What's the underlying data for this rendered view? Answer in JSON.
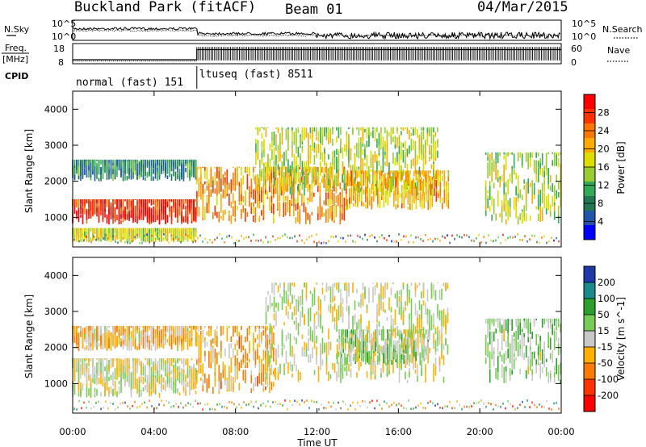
{
  "header": {
    "station": "Buckland Park (fitACF)",
    "beam": "Beam 01",
    "date": "04/Mar/2015"
  },
  "top_panels": {
    "nsky_label": "N.Sky",
    "nsearch_label": "N.Search",
    "freq_label_1": "Freq.",
    "freq_label_2": "[MHz]",
    "nave_label": "Nave",
    "cpid_label": "CPID",
    "noise_ticks_left": [
      "10^5",
      "10^0"
    ],
    "noise_ticks_right": [
      "10^5",
      "10^0"
    ],
    "freq_ticks": [
      "18",
      "8"
    ],
    "nave_ticks": [
      "60",
      "0"
    ],
    "modes": [
      "normal (fast) 151",
      "ltuseq (fast) 8511"
    ],
    "mode_change_hour": 6.1,
    "freq_before_mhz": 10,
    "freq_after_mhz": 15,
    "nave_before": 8,
    "nave_after": 50
  },
  "axes": {
    "x_title": "Time UT",
    "y_title_power": "Slant Range [km]",
    "y_title_velocity": "Slant Range [km]",
    "x_ticks": [
      "00:00",
      "04:00",
      "08:00",
      "12:00",
      "16:00",
      "20:00",
      "00:00"
    ],
    "y_ticks": [
      "1000",
      "2000",
      "3000",
      "4000"
    ],
    "xlim": [
      0,
      24
    ],
    "ylim": [
      180,
      4500
    ]
  },
  "colorbars": {
    "power_label": "Power [dB]",
    "power_ticks": [
      "28",
      "24",
      "20",
      "16",
      "12",
      "8",
      "4"
    ],
    "power_colors": [
      "#ff0000",
      "#ff3300",
      "#ff7700",
      "#ffaa00",
      "#dddd00",
      "#99cc33",
      "#33aa55",
      "#227755",
      "#2255aa",
      "#0000ff"
    ],
    "velocity_label": "Velocity [m s^-1]",
    "velocity_ticks": [
      "200",
      "100",
      "50",
      "15",
      "-15",
      "-50",
      "-100",
      "-200"
    ],
    "velocity_colors": [
      "#1f3aa8",
      "#1a8a8a",
      "#2ca02c",
      "#77cc55",
      "#c8c8c8",
      "#ffb000",
      "#ff7a00",
      "#ff3300",
      "#ff0000"
    ]
  },
  "chart_data": [
    {
      "type": "heatmap",
      "title": "Power",
      "x_label": "Time UT",
      "y_label": "Slant Range [km]",
      "xlim": [
        0,
        24
      ],
      "ylim": [
        180,
        4500
      ],
      "color_label": "Power [dB]",
      "color_range": [
        0,
        30
      ],
      "regions": [
        {
          "t0": 0.0,
          "t1": 6.1,
          "r0": 800,
          "r1": 1500,
          "value": 28
        },
        {
          "t0": 0.0,
          "t1": 6.1,
          "r0": 2000,
          "r1": 2600,
          "value": 7
        },
        {
          "t0": 0.0,
          "t1": 6.1,
          "r0": 300,
          "r1": 700,
          "value": 16
        },
        {
          "t0": 6.1,
          "t1": 13.5,
          "r0": 800,
          "r1": 2400,
          "value": 22
        },
        {
          "t0": 9.0,
          "t1": 18.0,
          "r0": 1600,
          "r1": 3500,
          "value": 15
        },
        {
          "t0": 13.5,
          "t1": 18.5,
          "r0": 1200,
          "r1": 2300,
          "value": 20
        },
        {
          "t0": 20.3,
          "t1": 24.0,
          "r0": 800,
          "r1": 2800,
          "value": 14
        }
      ]
    },
    {
      "type": "heatmap",
      "title": "Velocity",
      "x_label": "Time UT",
      "y_label": "Slant Range [km]",
      "xlim": [
        0,
        24
      ],
      "ylim": [
        180,
        4500
      ],
      "color_label": "Velocity [m s^-1]",
      "color_range": [
        -200,
        200
      ],
      "regions": [
        {
          "t0": 0.0,
          "t1": 6.1,
          "r0": 600,
          "r1": 1700,
          "value": 0
        },
        {
          "t0": 0.0,
          "t1": 6.1,
          "r0": 1900,
          "r1": 2600,
          "value": -40
        },
        {
          "t0": 6.1,
          "t1": 10.0,
          "r0": 700,
          "r1": 2600,
          "value": -60
        },
        {
          "t0": 9.5,
          "t1": 18.5,
          "r0": 1000,
          "r1": 3800,
          "value": 0
        },
        {
          "t0": 13.0,
          "t1": 17.5,
          "r0": 1500,
          "r1": 2500,
          "value": 30
        },
        {
          "t0": 20.3,
          "t1": 24.0,
          "r0": 1000,
          "r1": 2800,
          "value": 40
        }
      ]
    }
  ]
}
